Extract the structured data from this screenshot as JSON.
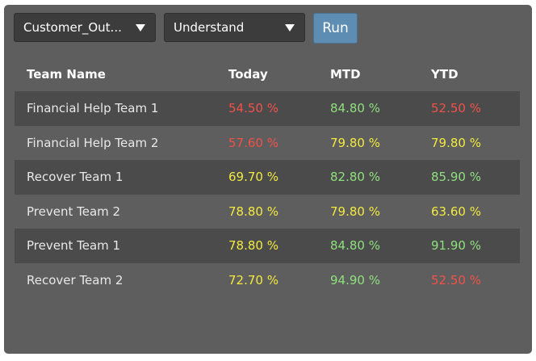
{
  "filters": {
    "metric_select": "Customer_Out...",
    "view_select": "Understand",
    "run_label": "Run"
  },
  "table": {
    "headers": [
      "Team Name",
      "Today",
      "MTD",
      "YTD"
    ],
    "rows": [
      {
        "team": "Financial Help Team 1",
        "today": "54.50 %",
        "mtd": "84.80 %",
        "ytd": "52.50 %",
        "today_status": "red",
        "mtd_status": "green",
        "ytd_status": "red"
      },
      {
        "team": "Financial Help Team 2",
        "today": "57.60 %",
        "mtd": "79.80 %",
        "ytd": "79.80 %",
        "today_status": "red",
        "mtd_status": "yellow",
        "ytd_status": "yellow"
      },
      {
        "team": "Recover Team 1",
        "today": "69.70 %",
        "mtd": "82.80 %",
        "ytd": "85.90 %",
        "today_status": "yellow",
        "mtd_status": "green",
        "ytd_status": "green"
      },
      {
        "team": "Prevent Team 2",
        "today": "78.80 %",
        "mtd": "79.80 %",
        "ytd": "63.60 %",
        "today_status": "yellow",
        "mtd_status": "yellow",
        "ytd_status": "yellow"
      },
      {
        "team": "Prevent Team 1",
        "today": "78.80 %",
        "mtd": "84.80 %",
        "ytd": "91.90 %",
        "today_status": "yellow",
        "mtd_status": "green",
        "ytd_status": "green"
      },
      {
        "team": "Recover Team 2",
        "today": "72.70 %",
        "mtd": "94.90 %",
        "ytd": "52.50 %",
        "today_status": "yellow",
        "mtd_status": "green",
        "ytd_status": "red"
      }
    ]
  },
  "colors": {
    "red": "#f0524a",
    "yellow": "#f2ea3f",
    "green": "#8fe07e",
    "panel": "#5e5e5e",
    "stripe": "#4b4b4b",
    "button": "#5d8db3"
  }
}
